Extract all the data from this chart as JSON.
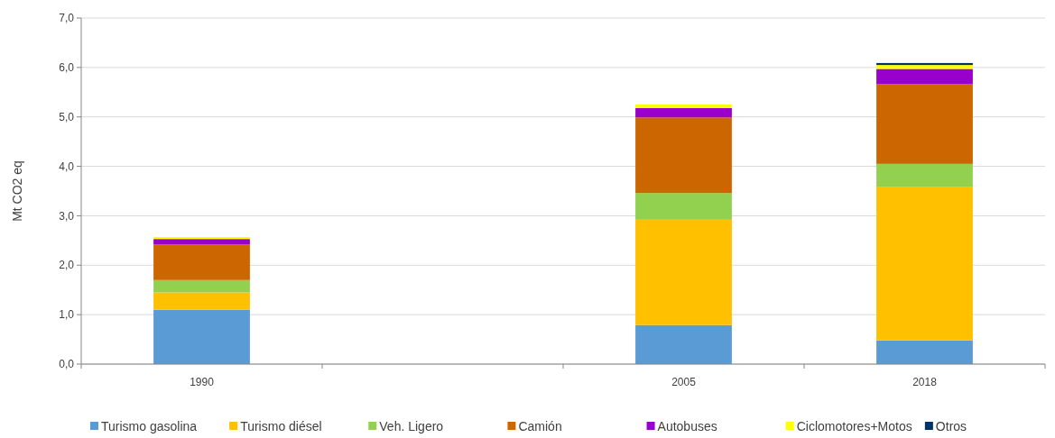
{
  "chart_data": {
    "type": "bar",
    "stacked": true,
    "ylabel": "Mt CO2 eq",
    "categories": [
      "1990",
      null,
      "2005",
      "2018"
    ],
    "series": [
      {
        "name": "Turismo gasolina",
        "color": "#5b9bd5",
        "values": [
          1.1,
          null,
          0.79,
          0.48
        ]
      },
      {
        "name": "Turismo diésel",
        "color": "#ffc000",
        "values": [
          0.35,
          null,
          2.13,
          3.11
        ]
      },
      {
        "name": "Veh. Ligero",
        "color": "#92d050",
        "values": [
          0.25,
          null,
          0.54,
          0.46
        ]
      },
      {
        "name": "Camión",
        "color": "#cc6600",
        "values": [
          0.72,
          null,
          1.53,
          1.61
        ]
      },
      {
        "name": "Autobuses",
        "color": "#9900cc",
        "values": [
          0.11,
          null,
          0.19,
          0.31
        ]
      },
      {
        "name": "Ciclomotores+Motos",
        "color": "#ffff00",
        "values": [
          0.04,
          null,
          0.07,
          0.08
        ]
      },
      {
        "name": "Otros",
        "color": "#003366",
        "values": [
          0,
          null,
          0,
          0.04
        ]
      }
    ],
    "ylim": [
      0,
      7
    ],
    "yticks": [
      {
        "value": 0,
        "label": "0,0"
      },
      {
        "value": 1,
        "label": "1,0"
      },
      {
        "value": 2,
        "label": "2,0"
      },
      {
        "value": 3,
        "label": "3,0"
      },
      {
        "value": 4,
        "label": "4,0"
      },
      {
        "value": 5,
        "label": "5,0"
      },
      {
        "value": 6,
        "label": "6,0"
      },
      {
        "value": 7,
        "label": "7,0"
      }
    ],
    "grid": "y",
    "legend": "bottom"
  }
}
